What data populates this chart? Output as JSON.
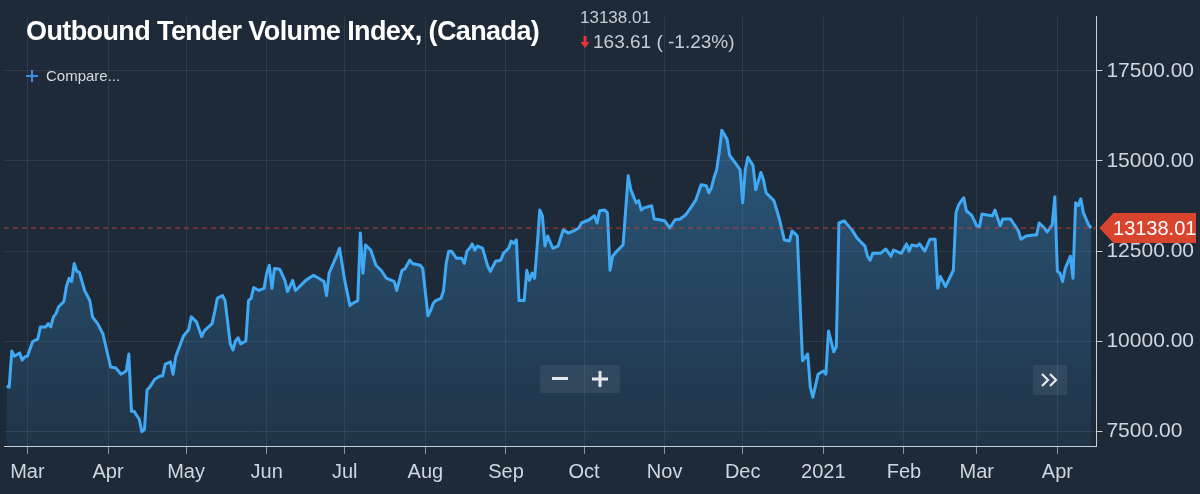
{
  "chart_data": {
    "type": "area",
    "title": "Outbound Tender Volume Index, (Canada)",
    "annotations": [
      "13138.01",
      "163.61 ( -1.23%)",
      "Compare..."
    ],
    "x": [
      "2020-02-22",
      "2020-02-23",
      "2020-02-24",
      "2020-02-25",
      "2020-02-27",
      "2020-02-28",
      "2020-02-29",
      "2020-03-01",
      "2020-03-03",
      "2020-03-05",
      "2020-03-06",
      "2020-03-08",
      "2020-03-09",
      "2020-03-10",
      "2020-03-11",
      "2020-03-12",
      "2020-03-13",
      "2020-03-15",
      "2020-03-16",
      "2020-03-17",
      "2020-03-18",
      "2020-03-19",
      "2020-03-20",
      "2020-03-21",
      "2020-03-23",
      "2020-03-25",
      "2020-03-26",
      "2020-03-28",
      "2020-03-30",
      "2020-04-02",
      "2020-04-04",
      "2020-04-06",
      "2020-04-08",
      "2020-04-09",
      "2020-04-10",
      "2020-04-11",
      "2020-04-13",
      "2020-04-14",
      "2020-04-15",
      "2020-04-16",
      "2020-04-17",
      "2020-04-19",
      "2020-04-21",
      "2020-04-22",
      "2020-04-23",
      "2020-04-25",
      "2020-04-26",
      "2020-04-27",
      "2020-04-30",
      "2020-05-02",
      "2020-05-03",
      "2020-05-05",
      "2020-05-07",
      "2020-05-08",
      "2020-05-11",
      "2020-05-12",
      "2020-05-13",
      "2020-05-15",
      "2020-05-16",
      "2020-05-18",
      "2020-05-19",
      "2020-05-20",
      "2020-05-21",
      "2020-05-22",
      "2020-05-24",
      "2020-05-25",
      "2020-05-26",
      "2020-05-27",
      "2020-05-29",
      "2020-05-31",
      "2020-06-01",
      "2020-06-02",
      "2020-06-03",
      "2020-06-04",
      "2020-06-06",
      "2020-06-08",
      "2020-06-09",
      "2020-06-11",
      "2020-06-12",
      "2020-06-13",
      "2020-06-16",
      "2020-06-19",
      "2020-06-21",
      "2020-06-23",
      "2020-06-24",
      "2020-06-25",
      "2020-06-28",
      "2020-06-29",
      "2020-07-01",
      "2020-07-03",
      "2020-07-04",
      "2020-07-06",
      "2020-07-07",
      "2020-07-08",
      "2020-07-09",
      "2020-07-11",
      "2020-07-13",
      "2020-07-15",
      "2020-07-17",
      "2020-07-19",
      "2020-07-20",
      "2020-07-21",
      "2020-07-23",
      "2020-07-24",
      "2020-07-26",
      "2020-07-27",
      "2020-07-30",
      "2020-07-31",
      "2020-08-02",
      "2020-08-03",
      "2020-08-04",
      "2020-08-05",
      "2020-08-07",
      "2020-08-08",
      "2020-08-09",
      "2020-08-10",
      "2020-08-11",
      "2020-08-13",
      "2020-08-15",
      "2020-08-16",
      "2020-08-17",
      "2020-08-18",
      "2020-08-19",
      "2020-08-20",
      "2020-08-21",
      "2020-08-23",
      "2020-08-25",
      "2020-08-26",
      "2020-08-28",
      "2020-08-30",
      "2020-08-31",
      "2020-09-02",
      "2020-09-03",
      "2020-09-04",
      "2020-09-05",
      "2020-09-06",
      "2020-09-08",
      "2020-09-09",
      "2020-09-10",
      "2020-09-11",
      "2020-09-12",
      "2020-09-13",
      "2020-09-14",
      "2020-09-15",
      "2020-09-16",
      "2020-09-17",
      "2020-09-19",
      "2020-09-21",
      "2020-09-23",
      "2020-09-25",
      "2020-09-27",
      "2020-09-29",
      "2020-09-30",
      "2020-10-03",
      "2020-10-05",
      "2020-10-06",
      "2020-10-07",
      "2020-10-09",
      "2020-10-10",
      "2020-10-11",
      "2020-10-12",
      "2020-10-14",
      "2020-10-16",
      "2020-10-18",
      "2020-10-19",
      "2020-10-21",
      "2020-10-22",
      "2020-10-23",
      "2020-10-24",
      "2020-10-27",
      "2020-10-28",
      "2020-10-30",
      "2020-11-01",
      "2020-11-03",
      "2020-11-05",
      "2020-11-07",
      "2020-11-09",
      "2020-11-11",
      "2020-11-13",
      "2020-11-15",
      "2020-11-17",
      "2020-11-18",
      "2020-11-19",
      "2020-11-20",
      "2020-11-21",
      "2020-11-22",
      "2020-11-23",
      "2020-11-25",
      "2020-11-26",
      "2020-11-28",
      "2020-11-30",
      "2020-12-01",
      "2020-12-02",
      "2020-12-03",
      "2020-12-05",
      "2020-12-06",
      "2020-12-08",
      "2020-12-09",
      "2020-12-10",
      "2020-12-13",
      "2020-12-15",
      "2020-12-17",
      "2020-12-19",
      "2020-12-20",
      "2020-12-22",
      "2020-12-24",
      "2020-12-26",
      "2020-12-27",
      "2020-12-28",
      "2020-12-30",
      "2021-01-01",
      "2021-01-02",
      "2021-01-03",
      "2021-01-05",
      "2021-01-06",
      "2021-01-07",
      "2021-01-09",
      "2021-01-12",
      "2021-01-14",
      "2021-01-17",
      "2021-01-18",
      "2021-01-19",
      "2021-01-20",
      "2021-01-23",
      "2021-01-25",
      "2021-01-27",
      "2021-01-28",
      "2021-01-31",
      "2021-02-02",
      "2021-02-03",
      "2021-02-04",
      "2021-02-06",
      "2021-02-07",
      "2021-02-09",
      "2021-02-11",
      "2021-02-13",
      "2021-02-14",
      "2021-02-15",
      "2021-02-17",
      "2021-02-20",
      "2021-02-21",
      "2021-02-22",
      "2021-02-24",
      "2021-02-25",
      "2021-02-27",
      "2021-03-01",
      "2021-03-02",
      "2021-03-03",
      "2021-03-05",
      "2021-03-07",
      "2021-03-08",
      "2021-03-10",
      "2021-03-11",
      "2021-03-14",
      "2021-03-15",
      "2021-03-17",
      "2021-03-18",
      "2021-03-20",
      "2021-03-23",
      "2021-03-24",
      "2021-03-25",
      "2021-03-27",
      "2021-03-28",
      "2021-03-30",
      "2021-03-31",
      "2021-04-01",
      "2021-04-02",
      "2021-04-03",
      "2021-04-04",
      "2021-04-06",
      "2021-04-07",
      "2021-04-08",
      "2021-04-09",
      "2021-04-10",
      "2021-04-11",
      "2021-04-13",
      "2021-04-14"
    ],
    "series": [
      {
        "color": "#3fa9f5",
        "values": [
          8760,
          8730,
          9730,
          9590,
          9680,
          9480,
          9570,
          9590,
          9990,
          10070,
          10400,
          10400,
          10490,
          10400,
          10680,
          10770,
          10960,
          11100,
          11520,
          11750,
          11660,
          12160,
          11940,
          11910,
          11410,
          11130,
          10680,
          10490,
          10210,
          9290,
          9260,
          9090,
          9180,
          9650,
          8060,
          8060,
          7840,
          7500,
          7560,
          8650,
          8730,
          8950,
          9040,
          9040,
          9370,
          9430,
          9090,
          9570,
          10150,
          10320,
          10680,
          10540,
          10130,
          10290,
          10490,
          10820,
          11190,
          11270,
          11130,
          9930,
          9760,
          10010,
          10100,
          9930,
          10010,
          11130,
          11190,
          11490,
          11410,
          11470,
          11890,
          12110,
          11470,
          12020,
          12000,
          11690,
          11380,
          11690,
          11410,
          11470,
          11690,
          11830,
          11750,
          11660,
          11270,
          11890,
          12390,
          12580,
          11690,
          10990,
          11050,
          11130,
          13000,
          11890,
          12670,
          12530,
          12110,
          11970,
          11750,
          11690,
          11660,
          11410,
          11970,
          12000,
          12250,
          12160,
          12110,
          12020,
          10710,
          10850,
          11050,
          11130,
          11190,
          11410,
          12160,
          12500,
          12500,
          12300,
          12300,
          12160,
          12500,
          12580,
          12700,
          12530,
          12640,
          12580,
          12080,
          11940,
          12220,
          12250,
          12440,
          12580,
          12780,
          12720,
          12810,
          11130,
          11130,
          11970,
          11690,
          11890,
          11750,
          12640,
          13640,
          13480,
          12640,
          12920,
          12580,
          12640,
          13090,
          13000,
          13060,
          13140,
          13280,
          13370,
          13480,
          13280,
          13620,
          13640,
          13560,
          11970,
          12360,
          12530,
          12670,
          14590,
          14200,
          13840,
          13900,
          13640,
          13700,
          13760,
          13390,
          13370,
          13340,
          13140,
          13370,
          13390,
          13500,
          13700,
          13920,
          14340,
          14310,
          14120,
          14260,
          14540,
          14760,
          15240,
          15850,
          15600,
          15150,
          14960,
          14760,
          13840,
          14760,
          15100,
          14870,
          14200,
          14680,
          14480,
          14120,
          13900,
          13420,
          12810,
          12780,
          13060,
          12920,
          9460,
          9650,
          8730,
          8450,
          9090,
          9180,
          9090,
          10290,
          9710,
          9850,
          13280,
          13340,
          13090,
          12860,
          12640,
          12360,
          12250,
          12440,
          12440,
          12560,
          12360,
          12530,
          12440,
          12700,
          12500,
          12670,
          12640,
          12700,
          12500,
          12830,
          12830,
          11470,
          11800,
          11520,
          11970,
          13560,
          13780,
          13980,
          13620,
          13500,
          13200,
          13170,
          13530,
          13500,
          13480,
          13640,
          13200,
          13390,
          13390,
          13280,
          13060,
          12830,
          12920,
          12950,
          12950,
          13280,
          13140,
          13030,
          13230,
          14010,
          11940,
          11890,
          11660,
          12020,
          12360,
          11750,
          13840,
          13760,
          13950,
          13560,
          13230,
          13140
        ]
      }
    ],
    "xlim": [
      "2020-02-21",
      "2021-04-16"
    ],
    "xticks": [
      {
        "value": "2020-03-01",
        "label": "Mar"
      },
      {
        "value": "2020-04-01",
        "label": "Apr"
      },
      {
        "value": "2020-05-01",
        "label": "May"
      },
      {
        "value": "2020-06-01",
        "label": "Jun"
      },
      {
        "value": "2020-07-01",
        "label": "Jul"
      },
      {
        "value": "2020-08-01",
        "label": "Aug"
      },
      {
        "value": "2020-09-01",
        "label": "Sep"
      },
      {
        "value": "2020-10-01",
        "label": "Oct"
      },
      {
        "value": "2020-11-01",
        "label": "Nov"
      },
      {
        "value": "2020-12-01",
        "label": "Dec"
      },
      {
        "value": "2021-01-01",
        "label": "2021"
      },
      {
        "value": "2021-02-01",
        "label": "Feb"
      },
      {
        "value": "2021-03-01",
        "label": "Mar"
      },
      {
        "value": "2021-04-01",
        "label": "Apr"
      }
    ],
    "ylim": [
      7100,
      19000
    ],
    "yticks": [
      {
        "value": 7500,
        "label": "7500.00"
      },
      {
        "value": 10000,
        "label": "10000.00"
      },
      {
        "value": 12500,
        "label": "12500.00"
      },
      {
        "value": 15000,
        "label": "15000.00"
      },
      {
        "value": 17500,
        "label": "17500.00"
      }
    ],
    "grid": true,
    "marker": "none",
    "ref_lines": [
      {
        "axis": "y",
        "value": 13138.01,
        "label": "13138.01",
        "color": "#d9442f",
        "line_style": "dashed"
      }
    ]
  }
}
